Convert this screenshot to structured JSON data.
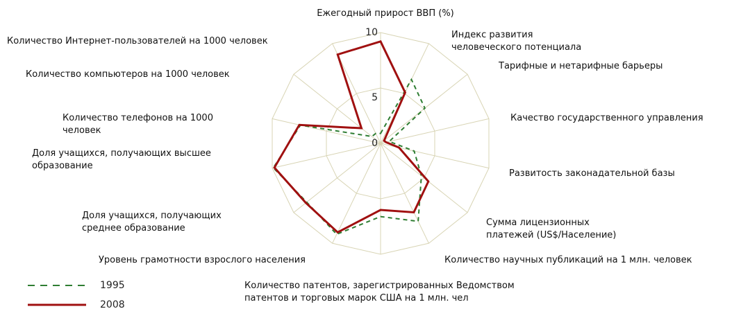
{
  "chart_data": {
    "type": "radar",
    "categories": [
      "Ежегодный прирост ВВП (%)",
      "Индекс развития человеческого потенциала",
      "Тарифные и нетарифные барьеры",
      "Качество государственного управления",
      "Развитость законадательной базы",
      "Сумма лицензионных платежей (US$/Население)",
      "Количество научных публикаций на 1 млн. человек",
      "Количество патентов, зарегистрированных Ведомством патентов и торговых марок США на 1 млн. чел",
      "Уровень грамотности взрослого населения",
      "Доля учащихся, получающих среднее образование",
      "Доля учащихся, получающих высшее образование",
      "Количество телефонов на 1000 человек",
      "Количество компьютеров на 1000 человек",
      "Количество Интернет-пользователей на 1000 человек"
    ],
    "series": [
      {
        "name": "1995",
        "color": "#2e7d32",
        "dashed": true,
        "values": [
          0.9,
          6.4,
          5.1,
          0.8,
          3.1,
          4.7,
          7.8,
          6.6,
          9.1,
          8.5,
          9.9,
          7.4,
          1.0,
          1.0
        ]
      },
      {
        "name": "2008",
        "color": "#a01010",
        "dashed": false,
        "values": [
          9.2,
          5.1,
          0.4,
          0.5,
          1.7,
          5.5,
          6.9,
          6.0,
          8.9,
          8.6,
          9.8,
          7.5,
          2.2,
          8.9
        ]
      }
    ],
    "ylim": [
      0,
      10
    ],
    "yticks": [
      0,
      5,
      10
    ],
    "grid": true
  }
}
